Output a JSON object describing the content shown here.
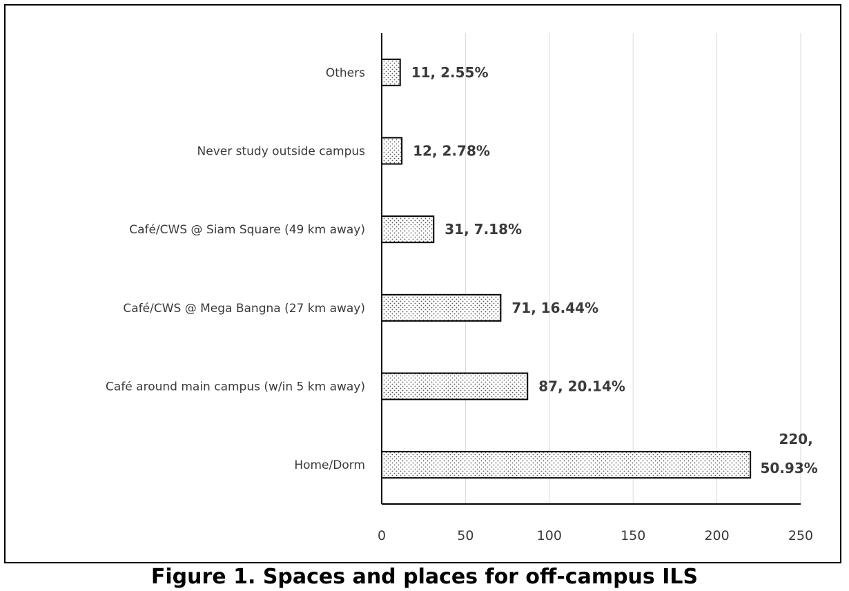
{
  "caption": "Figure 1. Spaces and places for off-campus ILS",
  "colors": {
    "bar_fill": "#ffffff",
    "bar_dots": "#555555",
    "bar_stroke": "#000000",
    "grid": "#d9d9d9",
    "axis": "#000000",
    "text": "#3a3a3a"
  },
  "chart_data": {
    "type": "bar",
    "orientation": "horizontal",
    "title": "",
    "xlabel": "",
    "ylabel": "",
    "xlim": [
      0,
      250
    ],
    "x_ticks": [
      0,
      50,
      100,
      150,
      200,
      250
    ],
    "grid": "vertical",
    "legend": "none",
    "bar_pattern": "dotted",
    "categories": [
      "Home/Dorm",
      "Café around main campus (w/in 5 km away)",
      "Café/CWS @ Mega Bangna (27 km away)",
      "Café/CWS @ Siam Square (49 km away)",
      "Never study outside campus",
      "Others"
    ],
    "values": [
      220,
      87,
      71,
      31,
      12,
      11
    ],
    "data_labels": [
      [
        "220,",
        "50.93%"
      ],
      [
        "87, 20.14%"
      ],
      [
        "71, 16.44%"
      ],
      [
        "31, 7.18%"
      ],
      [
        "12, 2.78%"
      ],
      [
        "11, 2.55%"
      ]
    ]
  }
}
